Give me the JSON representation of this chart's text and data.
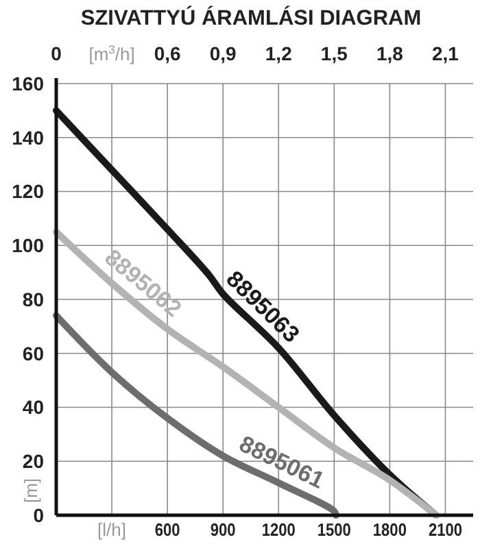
{
  "chart_data": {
    "type": "line",
    "title": "SZIVATTYÚ ÁRAMLÁSI DIAGRAM",
    "xlabel": "[l/h]",
    "x2label": "[m$^{3}$/h]",
    "ylabel": "[m]",
    "xlim": [
      0,
      2250
    ],
    "xticks": [
      {
        "value": 0,
        "label": null
      },
      {
        "value": 300,
        "label": null
      },
      600,
      900,
      1200,
      1500,
      1800,
      2100
    ],
    "x2lim": [
      0,
      2.25
    ],
    "x2ticks": [
      0,
      {
        "value": 0.3,
        "label": null
      },
      {
        "value": 0.6,
        "label": "0,6"
      },
      {
        "value": 0.9,
        "label": "0,9"
      },
      {
        "value": 1.2,
        "label": "1,2"
      },
      {
        "value": 1.5,
        "label": "1,5"
      },
      {
        "value": 1.8,
        "label": "1,8"
      },
      {
        "value": 2.1,
        "label": "2,1"
      }
    ],
    "ylim": [
      0,
      160
    ],
    "yticks": [
      0,
      20,
      40,
      60,
      80,
      100,
      120,
      140,
      160
    ],
    "grid": true,
    "marker": "none",
    "line_style": "solid",
    "series": [
      {
        "name": "8895063",
        "color": "#1a1a1a",
        "x": [
          0,
          300,
          600,
          825,
          900,
          1200,
          1500,
          1800,
          2050
        ],
        "values": [
          150,
          128,
          106,
          89,
          82,
          62,
          37,
          15,
          0
        ]
      },
      {
        "name": "8895062",
        "color": "#b3b3b3",
        "x": [
          0,
          300,
          600,
          900,
          1200,
          1500,
          1800,
          2050
        ],
        "values": [
          105,
          86,
          69,
          55,
          40,
          25,
          13,
          0
        ]
      },
      {
        "name": "8895061",
        "color": "#6d6d6d",
        "x": [
          0,
          300,
          600,
          900,
          1200,
          1500,
          1510
        ],
        "values": [
          74,
          53,
          36,
          22,
          12,
          1.5,
          0
        ]
      }
    ]
  }
}
